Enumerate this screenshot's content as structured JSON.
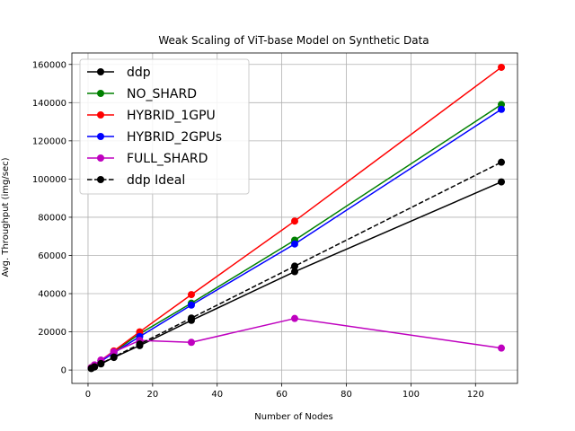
{
  "chart_data": {
    "type": "line",
    "title": "Weak Scaling of ViT-base Model on Synthetic Data",
    "xlabel": "Number of Nodes",
    "ylabel": "Avg. Throughput (img/sec)",
    "xlim": [
      -5,
      133
    ],
    "ylim": [
      -7000,
      166000
    ],
    "xticks": [
      0,
      20,
      40,
      60,
      80,
      100,
      120
    ],
    "xtick_labels": [
      "0",
      "20",
      "40",
      "60",
      "80",
      "100",
      "120"
    ],
    "yticks": [
      0,
      20000,
      40000,
      60000,
      80000,
      100000,
      120000,
      140000,
      160000
    ],
    "ytick_labels": [
      "0",
      "20000",
      "40000",
      "60000",
      "80000",
      "100000",
      "120000",
      "140000",
      "160000"
    ],
    "grid": true,
    "legend_position": "top-left",
    "x": [
      1,
      2,
      4,
      8,
      16,
      32,
      64,
      128
    ],
    "series": [
      {
        "name": "ddp",
        "color": "#000000",
        "dashed": false,
        "values": [
          800,
          1600,
          3200,
          6600,
          12800,
          26000,
          51500,
          98500
        ]
      },
      {
        "name": "NO_SHARD",
        "color": "#008000",
        "dashed": false,
        "values": [
          1200,
          2400,
          4800,
          9500,
          19000,
          35000,
          68000,
          139000
        ]
      },
      {
        "name": "HYBRID_1GPU",
        "color": "#ff0000",
        "dashed": false,
        "values": [
          1300,
          2600,
          5100,
          10000,
          20000,
          39500,
          78000,
          158500
        ]
      },
      {
        "name": "HYBRID_2GPUs",
        "color": "#0000ff",
        "dashed": false,
        "values": [
          1150,
          2300,
          4600,
          9000,
          17500,
          34000,
          66000,
          136500
        ]
      },
      {
        "name": "FULL_SHARD",
        "color": "#bf00bf",
        "dashed": false,
        "values": [
          1300,
          2700,
          5200,
          9500,
          15500,
          14500,
          27000,
          11500
        ]
      },
      {
        "name": "ddp Ideal",
        "color": "#000000",
        "dashed": true,
        "values": [
          850,
          1700,
          3400,
          6800,
          13600,
          27200,
          54400,
          108800
        ]
      }
    ]
  }
}
